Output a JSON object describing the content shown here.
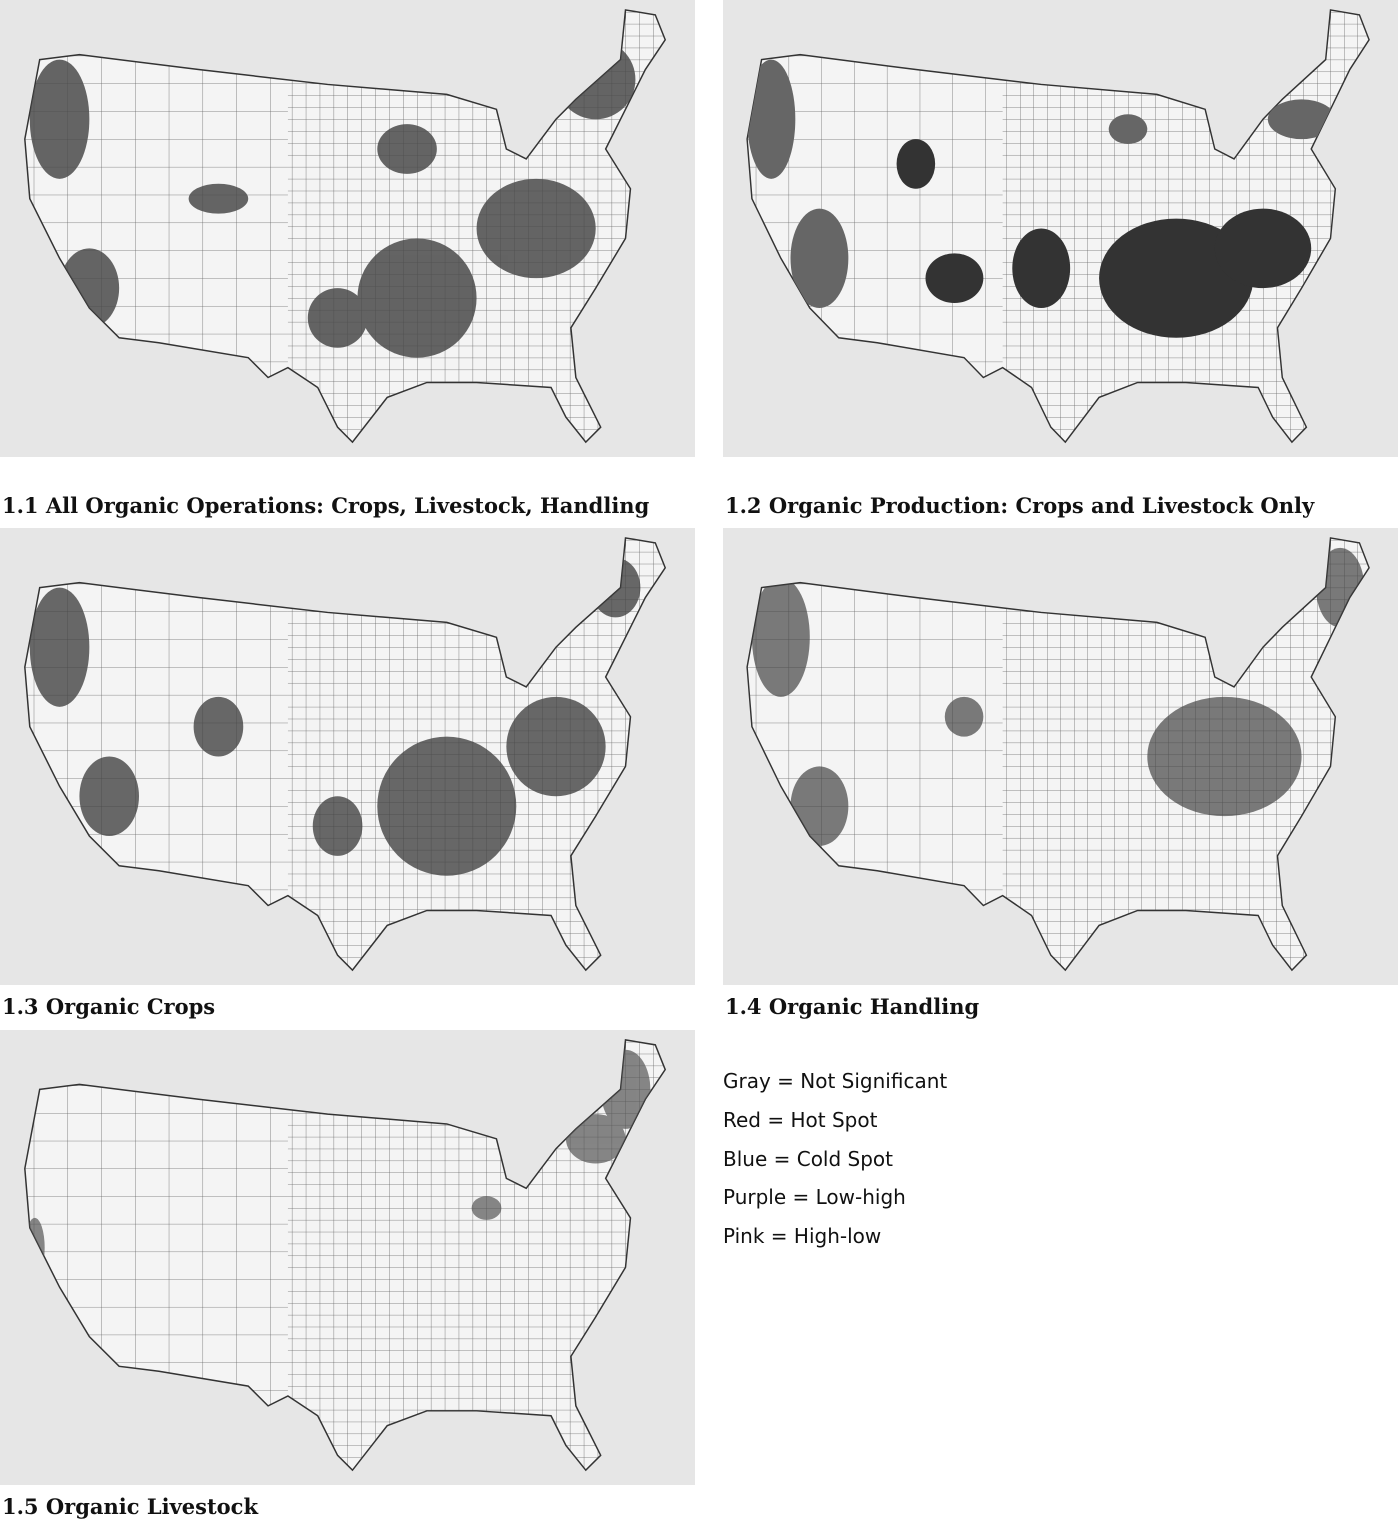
{
  "panels": [
    {
      "caption": "1.1 All Organic Operations: Crops, Livestock, Handling"
    },
    {
      "caption": "1.2 Organic Production: Crops and Livestock Only"
    },
    {
      "caption": "1.3 Organic Crops"
    },
    {
      "caption": "1.4 Organic Handling"
    },
    {
      "caption": "1.5 Organic Livestock"
    }
  ],
  "legend": [
    "Gray = Not Significant",
    "Red = Hot Spot",
    "Blue = Cold Spot",
    "Purple = Low-high",
    "Pink = High-low"
  ]
}
